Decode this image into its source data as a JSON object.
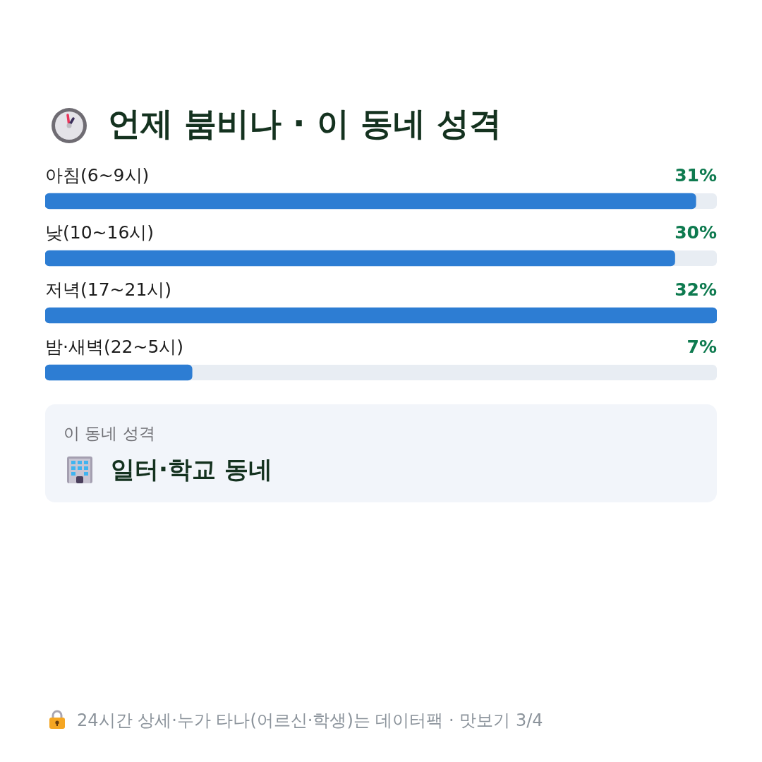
{
  "chart_data": {
    "type": "bar",
    "orientation": "horizontal",
    "title": "언제 붐비나 · 이 동네 성격",
    "categories": [
      "아침(6~9시)",
      "낮(10~16시)",
      "저녁(17~21시)",
      "밤·새벽(22~5시)"
    ],
    "values": [
      31,
      30,
      32,
      7
    ],
    "color": "#2d7dd3",
    "value_labels": [
      "31%",
      "30%",
      "32%",
      "7%"
    ],
    "legend": false,
    "annotations": [
      "이 동네 성격",
      "일터·학교 동네",
      "24시간 상세·누가 타나(어르신·학생)는 데이터팩 · 맛보기 3/4"
    ]
  }
}
